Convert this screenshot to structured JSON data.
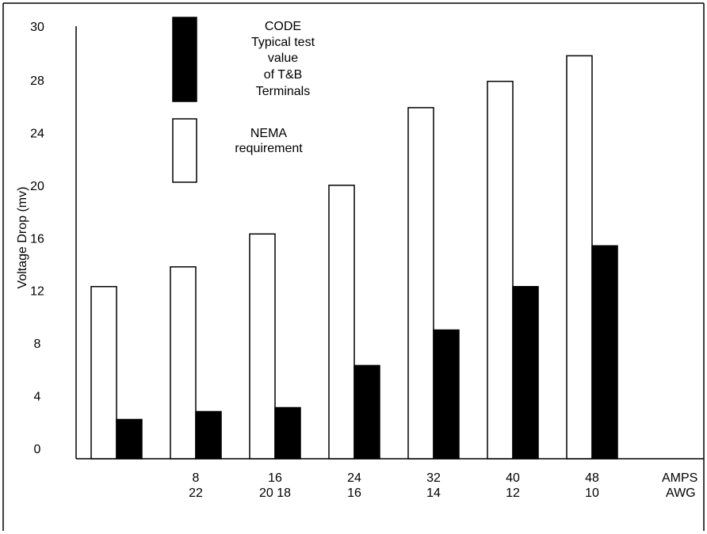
{
  "chart_data": {
    "type": "bar",
    "ylabel": "Voltage Drop (mv)",
    "ylim": [
      0,
      30
    ],
    "y_axis_scale": "uneven",
    "y_ticks": [
      0,
      4,
      8,
      12,
      16,
      20,
      24,
      28,
      30
    ],
    "x_axis_labels": {
      "row1_name": "AMPS",
      "row2_name": "AWG"
    },
    "categories": [
      {
        "amps": "",
        "awg": ""
      },
      {
        "amps": "8",
        "awg": "22"
      },
      {
        "amps": "16",
        "awg": "20 18"
      },
      {
        "amps": "24",
        "awg": "16"
      },
      {
        "amps": "32",
        "awg": "14"
      },
      {
        "amps": "40",
        "awg": "12"
      },
      {
        "amps": "48",
        "awg": "10"
      }
    ],
    "series": [
      {
        "name": "NEMA requirement",
        "legend_lines": [
          "NEMA",
          "requirement"
        ],
        "fill": "#ffffff",
        "values": [
          12.3,
          13.8,
          16.3,
          20,
          25.9,
          27.9,
          28.9
        ]
      },
      {
        "name": "CODE Typical test value of T&B Terminals",
        "legend_lines": [
          "CODE",
          "Typical test",
          "value",
          "of T&B",
          "Terminals"
        ],
        "fill": "#000000",
        "values": [
          2.2,
          2.8,
          3.1,
          6.3,
          9,
          12.3,
          15.4
        ]
      }
    ],
    "legend_position": "top-left",
    "grid": false
  }
}
